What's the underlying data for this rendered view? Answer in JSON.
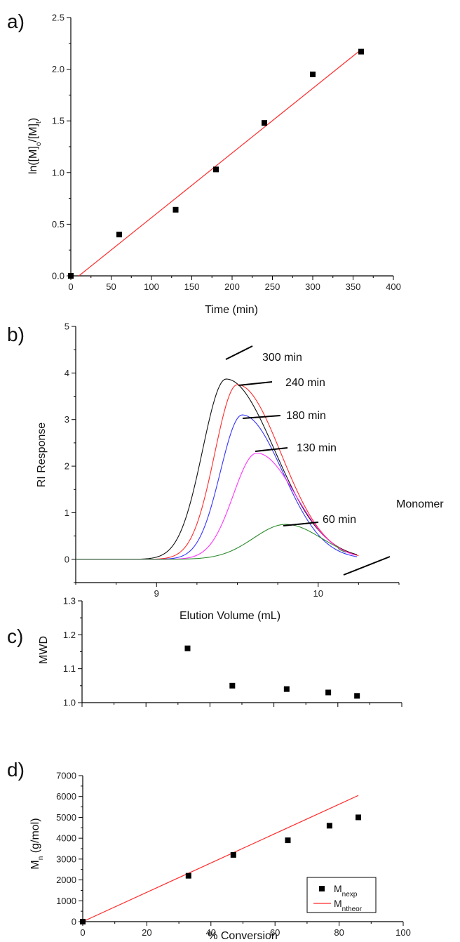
{
  "chart_data": [
    {
      "panel": "a)",
      "type": "scatter",
      "xlabel": "Time (min)",
      "ylabel": "ln([M]o/[M]t)",
      "xlim": [
        0,
        400
      ],
      "ylim": [
        0,
        2.5
      ],
      "xticks": [
        "0",
        "50",
        "100",
        "150",
        "200",
        "250",
        "300",
        "350",
        "400"
      ],
      "yticks": [
        "0.0",
        "0.5",
        "1.0",
        "1.5",
        "2.0",
        "2.5"
      ],
      "series": [
        {
          "kind": "points",
          "color": "#000000",
          "x": [
            0,
            60,
            130,
            180,
            240,
            300,
            360
          ],
          "y": [
            0.0,
            0.4,
            0.64,
            1.03,
            1.48,
            1.95,
            2.17
          ]
        },
        {
          "kind": "fit",
          "color": "#ff2b2b",
          "x": [
            10,
            360
          ],
          "y": [
            0.0,
            2.19
          ]
        }
      ]
    },
    {
      "panel": "b)",
      "type": "line",
      "xlabel": "Elution Volume (mL)",
      "ylabel": "RI Response",
      "xlim": [
        8.5,
        10.5
      ],
      "ylim": [
        -0.5,
        5
      ],
      "xticks": [
        "9",
        "10"
      ],
      "yticks": [
        "0",
        "1",
        "2",
        "3",
        "4",
        "5"
      ],
      "series": [
        {
          "color": "#111111",
          "peak_x": 9.43,
          "peak_y": 3.87,
          "annotation": "300 min"
        },
        {
          "color": "#ff2b2b",
          "peak_x": 9.5,
          "peak_y": 3.75,
          "annotation": "240 min"
        },
        {
          "color": "#3333ff",
          "peak_x": 9.53,
          "peak_y": 3.1,
          "annotation": "180 min"
        },
        {
          "color": "#ff33ff",
          "peak_x": 9.62,
          "peak_y": 2.28,
          "annotation": "130 min"
        },
        {
          "color": "#2e8b2e",
          "peak_x": 9.8,
          "peak_y": 0.75,
          "annotation": "60 min"
        }
      ],
      "extra_annotation": "Monomer"
    },
    {
      "panel": "c)",
      "type": "scatter",
      "ylabel": "MWD",
      "xlim": [
        0,
        100
      ],
      "ylim": [
        1.0,
        1.3
      ],
      "yticks": [
        "1.0",
        "1.1",
        "1.2",
        "1.3"
      ],
      "series": [
        {
          "kind": "points",
          "color": "#000000",
          "x": [
            33,
            47,
            64,
            77,
            86
          ],
          "y": [
            1.16,
            1.05,
            1.04,
            1.03,
            1.02
          ]
        }
      ]
    },
    {
      "panel": "d)",
      "type": "scatter",
      "xlabel": "% Conversion",
      "ylabel": "Mn (g/mol)",
      "xlim": [
        0,
        100
      ],
      "ylim": [
        0,
        7000
      ],
      "xticks": [
        "0",
        "20",
        "40",
        "60",
        "80",
        "100"
      ],
      "yticks": [
        "0",
        "1000",
        "2000",
        "3000",
        "4000",
        "5000",
        "6000",
        "7000"
      ],
      "legend": {
        "position": "bottom-right",
        "entries": [
          "Mnexp",
          "Mntheor"
        ]
      },
      "series": [
        {
          "kind": "points",
          "name": "Mnexp",
          "color": "#000000",
          "x": [
            0,
            33,
            47,
            64,
            77,
            86
          ],
          "y": [
            0,
            2200,
            3200,
            3900,
            4600,
            5000
          ]
        },
        {
          "kind": "fit",
          "name": "Mntheor",
          "color": "#ff2b2b",
          "x": [
            0,
            86
          ],
          "y": [
            0,
            6050
          ]
        }
      ]
    }
  ],
  "labels": {
    "a_ylabel_main": "ln([M]",
    "a_ylabel_sub1": "o",
    "a_ylabel_mid": "/[M]",
    "a_ylabel_sub2": "t",
    "a_ylabel_end": ")",
    "d_ylabel_main": "M",
    "d_ylabel_sub": "n",
    "d_ylabel_end": " (g/mol)",
    "leg1_main": "M",
    "leg1_sub": "nexp",
    "leg2_main": "M",
    "leg2_sub": "ntheor"
  }
}
